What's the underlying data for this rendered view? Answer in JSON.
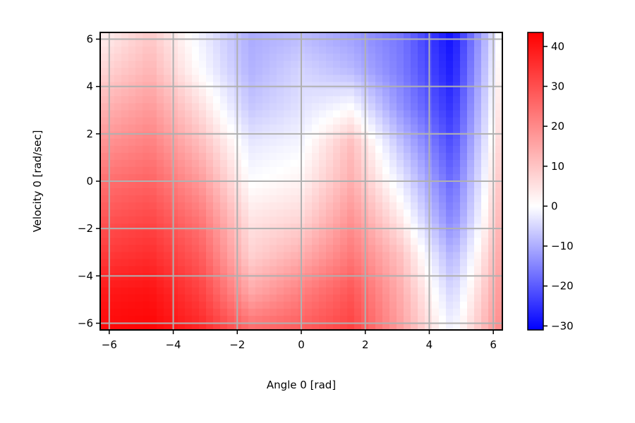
{
  "chart_data": {
    "type": "heatmap",
    "title": "",
    "xlabel": "Angle 0 [rad]",
    "ylabel": "Velocity 0 [rad/sec]",
    "xlim": [
      -6.283,
      6.283
    ],
    "ylim": [
      -6.283,
      6.283
    ],
    "xticks": [
      -6,
      -4,
      -2,
      0,
      2,
      4,
      6
    ],
    "yticks": [
      -6,
      -4,
      -2,
      0,
      2,
      4,
      6
    ],
    "xtick_labels": [
      "−6",
      "−4",
      "−2",
      "0",
      "2",
      "4",
      "6"
    ],
    "ytick_labels": [
      "−6",
      "−4",
      "−2",
      "0",
      "2",
      "4",
      "6"
    ],
    "grid": true,
    "colormap": "bwr",
    "colorbar": {
      "min": -31,
      "max": 43.5,
      "ticks": [
        40,
        30,
        20,
        10,
        0,
        -10,
        -20,
        -30
      ],
      "tick_labels": [
        "40",
        "30",
        "20",
        "10",
        "0",
        "−10",
        "−20",
        "−30"
      ]
    },
    "x": [
      -6.283,
      -4.712,
      -3.142,
      -1.571,
      0,
      1.571,
      3.142,
      4.712,
      6.283
    ],
    "y": [
      6.283,
      4.712,
      3.142,
      1.571,
      0,
      -1.571,
      -3.142,
      -4.712,
      -6.283
    ],
    "z": [
      [
        8,
        14,
        4,
        -6,
        -4,
        -8,
        -14,
        -29,
        8
      ],
      [
        12,
        17,
        6,
        -5,
        0,
        -4,
        -13,
        -27,
        10
      ],
      [
        17,
        21,
        11,
        -2,
        2,
        6,
        -10,
        -24,
        12
      ],
      [
        22,
        25,
        16,
        3,
        5,
        16,
        -3,
        -20,
        14
      ],
      [
        27,
        29,
        21,
        6,
        8,
        18,
        3,
        -16,
        16
      ],
      [
        31,
        33,
        26,
        10,
        12,
        22,
        9,
        -12,
        18
      ],
      [
        35,
        37,
        30,
        13,
        18,
        26,
        15,
        -5,
        20
      ],
      [
        40,
        41,
        34,
        19,
        25,
        31,
        18,
        0,
        22
      ],
      [
        42,
        43,
        38,
        28,
        30,
        34,
        20,
        4,
        24
      ]
    ]
  },
  "colors": {
    "low": "#0000ff",
    "mid": "#ffffff",
    "high": "#ff0000",
    "grid": "#b0b0b0",
    "axes": "#000000"
  }
}
